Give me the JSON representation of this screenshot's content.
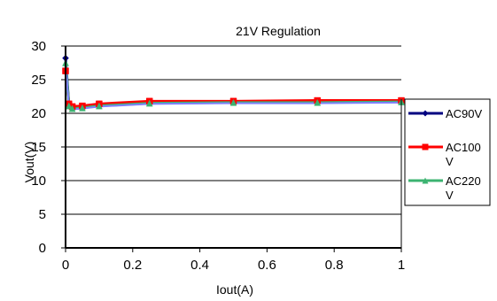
{
  "chart_data": {
    "type": "line",
    "title": "21V Regulation",
    "xlabel": "Iout(A)",
    "ylabel": "Vout(V)",
    "xlim": [
      0,
      1
    ],
    "ylim": [
      0,
      30
    ],
    "xticks": [
      "0",
      "0.2",
      "0.4",
      "0.6",
      "0.8",
      "1"
    ],
    "xtick_values": [
      0,
      0.2,
      0.4,
      0.6,
      0.8,
      1
    ],
    "yticks": [
      "0",
      "5",
      "10",
      "15",
      "20",
      "25",
      "30"
    ],
    "ytick_values": [
      0,
      5,
      10,
      15,
      20,
      25,
      30
    ],
    "grid": "horizontal",
    "legend_position": "right",
    "series": [
      {
        "name": "AC90V",
        "color": "#000080",
        "marker": "diamond",
        "x": [
          0,
          0.01,
          0.02,
          0.05,
          0.1,
          0.25,
          0.5,
          0.75,
          1
        ],
        "y": [
          28.2,
          21.3,
          20.8,
          20.9,
          21.2,
          21.6,
          21.7,
          21.7,
          21.8
        ]
      },
      {
        "name": "AC100V",
        "color": "#ff0000",
        "marker": "square",
        "x": [
          0,
          0.01,
          0.02,
          0.05,
          0.1,
          0.25,
          0.5,
          0.75,
          1
        ],
        "y": [
          26.3,
          21.4,
          21.0,
          21.1,
          21.4,
          21.8,
          21.8,
          21.9,
          21.9
        ]
      },
      {
        "name": "AC220V",
        "color": "#3cb371",
        "marker": "triangle",
        "x": [
          0,
          0.01,
          0.02,
          0.05,
          0.1,
          0.25,
          0.5,
          0.75,
          1
        ],
        "y": [
          27.5,
          21.1,
          20.7,
          20.8,
          21.1,
          21.5,
          21.6,
          21.6,
          21.7
        ]
      }
    ],
    "overlay_color": "#8080ff"
  }
}
